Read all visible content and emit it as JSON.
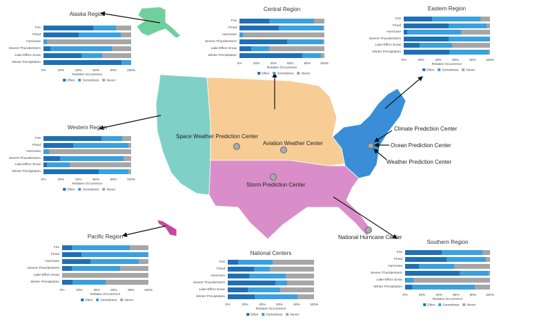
{
  "colors": {
    "often": "#1f6fb5",
    "sometimes": "#3aa0e0",
    "never": "#a6a6a6",
    "western": "#7fd0c6",
    "central": "#f7cd95",
    "southern": "#d98ec9",
    "eastern": "#3a8ed8",
    "alaska": "#6fd09e",
    "hawaii": "#c9479b"
  },
  "categories": [
    "Fire",
    "Flood",
    "Hurricane",
    "Severe Thunderstorm",
    "Lake-Effect Snow",
    "Winter Precipitation"
  ],
  "ticks": [
    "0%",
    "20%",
    "40%",
    "60%",
    "80%",
    "100%"
  ],
  "axis_label": "Relative Occurrence",
  "legend": [
    "Often",
    "Sometimes",
    "Never"
  ],
  "centers": [
    {
      "label": "Space Weather Prediction Center"
    },
    {
      "label": "Aviation Weather Center"
    },
    {
      "label": "Storm Prediction Center"
    },
    {
      "label": "Climate Prediction Center"
    },
    {
      "label": "Ocean Prediction Center"
    },
    {
      "label": "Weather Prediction Center"
    },
    {
      "label": "National Hurricane Center"
    }
  ],
  "chart_data": [
    {
      "type": "bar",
      "stacked": true,
      "title": "Alaska Region",
      "often": [
        57,
        40,
        0,
        8,
        43,
        89
      ],
      "sometimes": [
        26,
        48,
        4,
        70,
        24,
        11
      ],
      "xlim": [
        0,
        100
      ]
    },
    {
      "type": "bar",
      "stacked": true,
      "title": "Central Region",
      "often": [
        35,
        46,
        0,
        56,
        14,
        74
      ],
      "sometimes": [
        53,
        52,
        4,
        42,
        21,
        22
      ],
      "xlim": [
        0,
        100
      ]
    },
    {
      "type": "bar",
      "stacked": true,
      "title": "Eastern Region",
      "often": [
        33,
        52,
        4,
        52,
        18,
        53
      ],
      "sometimes": [
        56,
        44,
        62,
        48,
        38,
        45
      ],
      "xlim": [
        0,
        100
      ]
    },
    {
      "type": "bar",
      "stacked": true,
      "title": "Western Region",
      "often": [
        66,
        34,
        0,
        19,
        4,
        63
      ],
      "sometimes": [
        24,
        63,
        6,
        72,
        26,
        34
      ],
      "xlim": [
        0,
        100
      ]
    },
    {
      "type": "bar",
      "stacked": true,
      "title": "Pacific Region",
      "often": [
        11,
        22,
        33,
        11,
        0,
        12
      ],
      "sometimes": [
        67,
        78,
        56,
        56,
        0,
        38
      ],
      "xlim": [
        0,
        100
      ]
    },
    {
      "type": "bar",
      "stacked": true,
      "title": "National Centers",
      "often": [
        12,
        30,
        25,
        55,
        23,
        31
      ],
      "sometimes": [
        40,
        19,
        42,
        14,
        38,
        50
      ],
      "xlim": [
        0,
        100
      ]
    },
    {
      "type": "bar",
      "stacked": true,
      "title": "Southern Region",
      "often": [
        43,
        49,
        16,
        64,
        1,
        8
      ],
      "sometimes": [
        48,
        46,
        42,
        34,
        9,
        74
      ],
      "xlim": [
        0,
        100
      ]
    }
  ]
}
